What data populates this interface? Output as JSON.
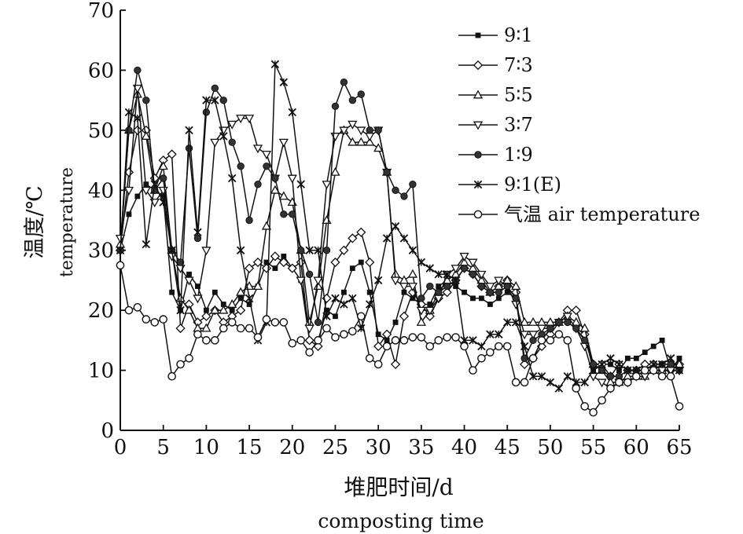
{
  "chart_data": {
    "type": "line",
    "title": "",
    "xlabel_cn": "堆肥时间/d",
    "xlabel_en": "composting time",
    "ylabel_cn": "温度/℃",
    "ylabel_en": "temperature",
    "xlim": [
      0,
      65
    ],
    "ylim": [
      0,
      70
    ],
    "xticks": [
      0,
      5,
      10,
      15,
      20,
      25,
      30,
      35,
      40,
      45,
      50,
      55,
      60,
      65
    ],
    "yticks": [
      0,
      10,
      20,
      30,
      40,
      50,
      60,
      70
    ],
    "grid": false,
    "legend_position": "top-right",
    "series": [
      {
        "name": "9∶1",
        "marker": "square",
        "x": [
          0,
          1,
          2,
          3,
          4,
          5,
          6,
          7,
          8,
          9,
          10,
          11,
          12,
          13,
          14,
          15,
          16,
          17,
          18,
          19,
          20,
          21,
          22,
          23,
          24,
          25,
          26,
          27,
          28,
          29,
          30,
          31,
          32,
          33,
          34,
          35,
          36,
          37,
          38,
          39,
          40,
          41,
          42,
          43,
          44,
          45,
          46,
          47,
          48,
          49,
          50,
          51,
          52,
          53,
          54,
          55,
          56,
          57,
          58,
          59,
          60,
          61,
          62,
          63,
          64,
          65
        ],
        "y": [
          30,
          36,
          39,
          41,
          40,
          39,
          23,
          20,
          26,
          24,
          20,
          23,
          21,
          20,
          22,
          21,
          24,
          28,
          27,
          29,
          27,
          25,
          15,
          15,
          20,
          19,
          23,
          27,
          28,
          23,
          16,
          15,
          18,
          23,
          22,
          21,
          21,
          24,
          25,
          24,
          23,
          22,
          22,
          21,
          22,
          23,
          22,
          12,
          12,
          15,
          17,
          18,
          18,
          17,
          16,
          10,
          11,
          11,
          10,
          12,
          12,
          13,
          14,
          15,
          10,
          12
        ]
      },
      {
        "name": "7∶3",
        "marker": "diamond-open",
        "x": [
          0,
          1,
          2,
          3,
          4,
          5,
          6,
          7,
          8,
          9,
          10,
          11,
          12,
          13,
          14,
          15,
          16,
          17,
          18,
          19,
          20,
          21,
          22,
          23,
          24,
          25,
          26,
          27,
          28,
          29,
          30,
          31,
          32,
          33,
          34,
          35,
          36,
          37,
          38,
          39,
          40,
          41,
          42,
          43,
          44,
          45,
          46,
          47,
          48,
          49,
          50,
          51,
          52,
          53,
          54,
          55,
          56,
          57,
          58,
          59,
          60,
          61,
          62,
          63,
          64,
          65
        ],
        "y": [
          30,
          43,
          50,
          50,
          42,
          45,
          46,
          17,
          21,
          18,
          19,
          20,
          18,
          19,
          20,
          27,
          28,
          27,
          29,
          28,
          27,
          28,
          15,
          14,
          22,
          28,
          30,
          32,
          33,
          28,
          14,
          16,
          11,
          19,
          23,
          21,
          19,
          22,
          23,
          25,
          27,
          26,
          24,
          23,
          24,
          25,
          23,
          11,
          12,
          14,
          16,
          18,
          20,
          20,
          16,
          11,
          11,
          9,
          11,
          10,
          10,
          11,
          11,
          10,
          10,
          11
        ]
      },
      {
        "name": "5∶5",
        "marker": "triangle-up-open",
        "x": [
          0,
          1,
          2,
          3,
          4,
          5,
          6,
          7,
          8,
          9,
          10,
          11,
          12,
          13,
          14,
          15,
          16,
          17,
          18,
          19,
          20,
          21,
          22,
          23,
          24,
          25,
          26,
          27,
          28,
          29,
          30,
          31,
          32,
          33,
          34,
          35,
          36,
          37,
          38,
          39,
          40,
          41,
          42,
          43,
          44,
          45,
          46,
          47,
          48,
          49,
          50,
          51,
          52,
          53,
          54,
          55,
          56,
          57,
          58,
          59,
          60,
          61,
          62,
          63,
          64,
          65
        ],
        "y": [
          31,
          50,
          56,
          49,
          40,
          44,
          30,
          22,
          20,
          17,
          17,
          20,
          20,
          21,
          23,
          24,
          24,
          34,
          40,
          39,
          38,
          30,
          18,
          24,
          35,
          43,
          50,
          48,
          48,
          48,
          47,
          43,
          26,
          25,
          26,
          18,
          20,
          23,
          25,
          26,
          28,
          27,
          25,
          23,
          24,
          25,
          24,
          18,
          18,
          18,
          18,
          18,
          19,
          18,
          17,
          11,
          10,
          8,
          8,
          9,
          9,
          9,
          10,
          10,
          11,
          11
        ]
      },
      {
        "name": "3∶7",
        "marker": "triangle-down-open",
        "x": [
          0,
          1,
          2,
          3,
          4,
          5,
          6,
          7,
          8,
          9,
          10,
          11,
          12,
          13,
          14,
          15,
          16,
          17,
          18,
          19,
          20,
          21,
          22,
          23,
          24,
          25,
          26,
          27,
          28,
          29,
          30,
          31,
          32,
          33,
          34,
          35,
          36,
          37,
          38,
          39,
          40,
          41,
          42,
          43,
          44,
          45,
          46,
          47,
          48,
          49,
          50,
          51,
          52,
          53,
          54,
          55,
          56,
          57,
          58,
          59,
          60,
          61,
          62,
          63,
          64,
          65
        ],
        "y": [
          32,
          40,
          57,
          40,
          38,
          40,
          29,
          27,
          25,
          22,
          30,
          48,
          50,
          51,
          52,
          52,
          47,
          46,
          42,
          48,
          42,
          25,
          17,
          25,
          41,
          49,
          50,
          51,
          50,
          49,
          50,
          43,
          25,
          24,
          24,
          20,
          20,
          22,
          26,
          27,
          29,
          28,
          26,
          24,
          25,
          24,
          21,
          16,
          16,
          17,
          17,
          18,
          19,
          17,
          14,
          9,
          8,
          7,
          8,
          8,
          9,
          9,
          10,
          10,
          10,
          10
        ]
      },
      {
        "name": "1∶9",
        "marker": "circle-filled",
        "x": [
          0,
          1,
          2,
          3,
          4,
          5,
          6,
          7,
          8,
          9,
          10,
          11,
          12,
          13,
          14,
          15,
          16,
          17,
          18,
          19,
          20,
          21,
          22,
          23,
          24,
          25,
          26,
          27,
          28,
          29,
          30,
          31,
          32,
          33,
          34,
          35,
          36,
          37,
          38,
          39,
          40,
          41,
          42,
          43,
          44,
          45,
          46,
          47,
          48,
          49,
          50,
          51,
          52,
          53,
          54,
          55,
          56,
          57,
          58,
          59,
          60,
          61,
          62,
          63,
          64,
          65
        ],
        "y": [
          30,
          50,
          60,
          55,
          40,
          42,
          30,
          28,
          47,
          32,
          53,
          57,
          55,
          48,
          44,
          35,
          41,
          44,
          42,
          36,
          36,
          30,
          26,
          18,
          30,
          54,
          58,
          55,
          56,
          50,
          50,
          43,
          40,
          39,
          41,
          22,
          24,
          23,
          24,
          25,
          27,
          26,
          24,
          23,
          23,
          24,
          22,
          12,
          15,
          16,
          17,
          18,
          18,
          17,
          15,
          11,
          10,
          9,
          9,
          10,
          10,
          10,
          10,
          11,
          11,
          10
        ]
      },
      {
        "name": "9∶1(E)",
        "marker": "star",
        "x": [
          0,
          1,
          2,
          3,
          4,
          5,
          6,
          7,
          8,
          9,
          10,
          11,
          12,
          13,
          14,
          15,
          16,
          17,
          18,
          19,
          20,
          21,
          22,
          23,
          24,
          25,
          26,
          27,
          28,
          29,
          30,
          31,
          32,
          33,
          34,
          35,
          36,
          37,
          38,
          39,
          40,
          41,
          42,
          43,
          44,
          45,
          46,
          47,
          48,
          49,
          50,
          51,
          52,
          53,
          54,
          55,
          56,
          57,
          58,
          59,
          60,
          61,
          62,
          63,
          64,
          65
        ],
        "y": [
          30,
          53,
          52,
          31,
          41,
          38,
          30,
          20,
          50,
          33,
          55,
          55,
          49,
          42,
          30,
          22,
          15,
          18,
          61,
          58,
          53,
          41,
          30,
          30,
          19,
          22,
          21,
          22,
          17,
          21,
          25,
          32,
          34,
          32,
          30,
          28,
          27,
          26,
          26,
          25,
          15,
          15,
          14,
          16,
          16,
          18,
          18,
          14,
          9,
          9,
          8,
          7,
          9,
          8,
          8,
          10,
          11,
          12,
          11,
          10,
          10,
          10,
          11,
          11,
          12,
          10
        ]
      },
      {
        "name": "气温 air temperature",
        "marker": "circle-open",
        "x": [
          0,
          1,
          2,
          3,
          4,
          5,
          6,
          7,
          8,
          9,
          10,
          11,
          12,
          13,
          14,
          15,
          16,
          17,
          18,
          19,
          20,
          21,
          22,
          23,
          24,
          25,
          26,
          27,
          28,
          29,
          30,
          31,
          32,
          33,
          34,
          35,
          36,
          37,
          38,
          39,
          40,
          41,
          42,
          43,
          44,
          45,
          46,
          47,
          48,
          49,
          50,
          51,
          52,
          53,
          54,
          55,
          56,
          57,
          58,
          59,
          60,
          61,
          62,
          63,
          64,
          65
        ],
        "y": [
          27.5,
          20,
          20.5,
          18.5,
          18,
          18.5,
          9,
          11,
          12,
          16,
          15,
          15,
          17,
          18,
          17,
          17,
          15.5,
          18.5,
          18,
          18,
          14.5,
          15,
          13,
          15,
          17,
          15.5,
          16,
          16.5,
          19,
          12,
          11,
          14,
          15,
          15,
          15.5,
          15.5,
          14,
          15,
          15.5,
          15.5,
          14,
          10,
          12,
          13,
          14,
          14,
          8,
          8,
          12,
          15,
          15,
          16,
          15,
          7,
          4,
          3,
          5,
          7,
          8,
          8,
          9,
          10,
          10,
          9,
          9,
          4
        ]
      }
    ]
  }
}
